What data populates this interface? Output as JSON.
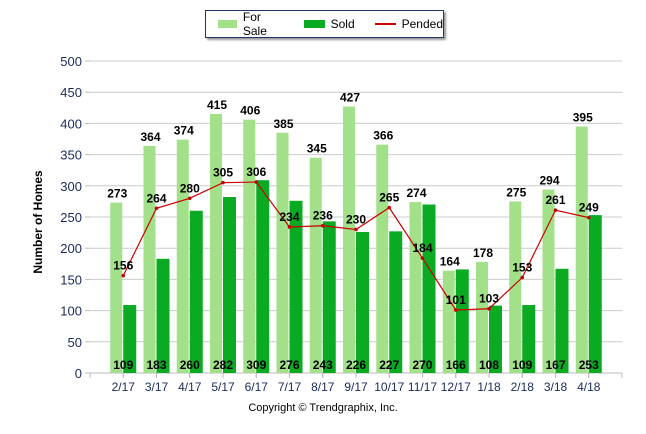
{
  "chart_data": {
    "type": "bar",
    "title": "",
    "xlabel": "",
    "ylabel": "Number of Homes",
    "ylim": [
      0,
      500
    ],
    "yticks": [
      0,
      50,
      100,
      150,
      200,
      250,
      300,
      350,
      400,
      450,
      500
    ],
    "grid": true,
    "legend_placement": "top-center",
    "categories": [
      "2/17",
      "3/17",
      "4/17",
      "5/17",
      "6/17",
      "7/17",
      "8/17",
      "9/17",
      "10/17",
      "11/17",
      "12/17",
      "1/18",
      "2/18",
      "3/18",
      "4/18"
    ],
    "series": [
      {
        "name": "For Sale",
        "type": "bar",
        "color": "#a2e08a",
        "values": [
          273,
          364,
          374,
          415,
          406,
          385,
          345,
          427,
          366,
          274,
          164,
          178,
          275,
          294,
          395
        ]
      },
      {
        "name": "Sold",
        "type": "bar",
        "color": "#0aaa22",
        "values": [
          109,
          183,
          260,
          282,
          309,
          276,
          243,
          226,
          227,
          270,
          166,
          108,
          109,
          167,
          253
        ]
      },
      {
        "name": "Pended",
        "type": "line",
        "color": "#cc0000",
        "values": [
          156,
          264,
          280,
          305,
          306,
          234,
          236,
          230,
          265,
          184,
          101,
          103,
          153,
          261,
          249
        ]
      }
    ]
  },
  "legend": {
    "for_sale": "For Sale",
    "sold": "Sold",
    "pended": "Pended"
  },
  "footer": {
    "copyright": "Copyright © Trendgraphix, Inc."
  }
}
